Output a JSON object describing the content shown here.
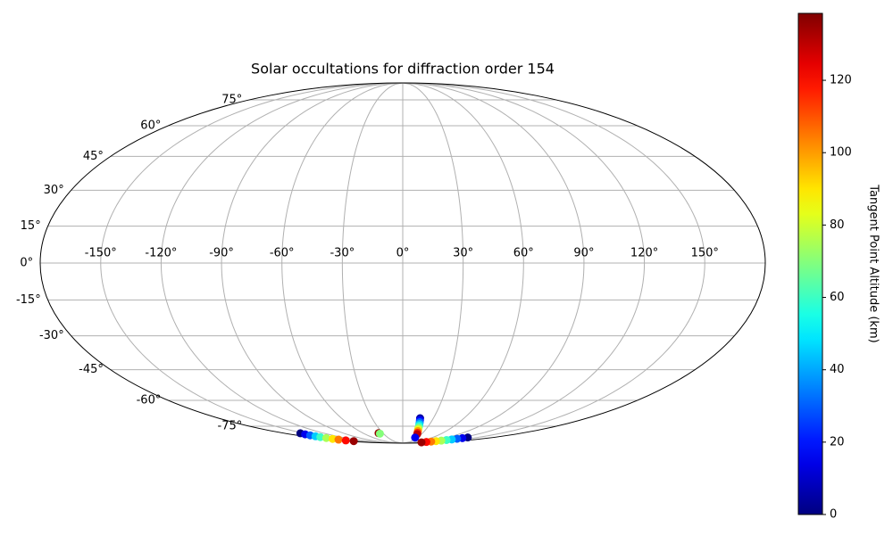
{
  "chart_data": {
    "type": "scatter",
    "projection": "mollweide",
    "title": "Solar occultations for diffraction order 154",
    "xlim": [
      -180,
      180
    ],
    "ylim": [
      -90,
      90
    ],
    "xticks": [
      {
        "value": -150,
        "label": "-150°"
      },
      {
        "value": -120,
        "label": "-120°"
      },
      {
        "value": -90,
        "label": "-90°"
      },
      {
        "value": -60,
        "label": "-60°"
      },
      {
        "value": -30,
        "label": "-30°"
      },
      {
        "value": 0,
        "label": "0°"
      },
      {
        "value": 30,
        "label": "30°"
      },
      {
        "value": 60,
        "label": "60°"
      },
      {
        "value": 90,
        "label": "90°"
      },
      {
        "value": 120,
        "label": "120°"
      },
      {
        "value": 150,
        "label": "150°"
      }
    ],
    "yticks": [
      {
        "value": -75,
        "label": "-75°"
      },
      {
        "value": -60,
        "label": "-60°"
      },
      {
        "value": -45,
        "label": "-45°"
      },
      {
        "value": -30,
        "label": "-30°"
      },
      {
        "value": -15,
        "label": "-15°"
      },
      {
        "value": 0,
        "label": "0°"
      },
      {
        "value": 15,
        "label": "15°"
      },
      {
        "value": 30,
        "label": "30°"
      },
      {
        "value": 45,
        "label": "45°"
      },
      {
        "value": 60,
        "label": "60°"
      },
      {
        "value": 75,
        "label": "75°"
      }
    ],
    "grid": true,
    "grid_color": "#b0b0b0",
    "cmap": "jet",
    "clim": [
      0,
      138.5
    ],
    "cticks": [
      0,
      20,
      40,
      60,
      80,
      100,
      120
    ],
    "colorbar_label": "Tangent Point Altitude (km)",
    "x": [
      -156,
      -157,
      -158,
      -159,
      -160,
      -161,
      -162,
      -163,
      -164,
      -165,
      130,
      127,
      124,
      121,
      118,
      115,
      112,
      108,
      104,
      100,
      17,
      17.5,
      18,
      18.5,
      19,
      19.5,
      20,
      21,
      22,
      23,
      -36.6,
      -35.5,
      25
    ],
    "y": [
      -80,
      -80.8,
      -81.6,
      -82.4,
      -83.1,
      -83.9,
      -84.7,
      -85.4,
      -86.2,
      -87,
      -83.4,
      -84,
      -84.6,
      -85.2,
      -85.8,
      -86.4,
      -87,
      -87.5,
      -88,
      -88.5,
      -70,
      -71.2,
      -72.4,
      -73.6,
      -74.8,
      -76,
      -77.2,
      -78.4,
      -79.6,
      -80.7,
      -79.9,
      -80.3,
      -83.5
    ],
    "c": [
      0,
      15,
      30,
      45,
      60,
      75,
      90,
      105,
      120,
      135,
      0,
      15,
      30,
      45,
      60,
      75,
      90,
      105,
      120,
      135,
      5,
      18,
      31,
      44,
      57,
      70,
      83,
      100,
      115,
      130,
      136,
      70,
      15
    ]
  }
}
